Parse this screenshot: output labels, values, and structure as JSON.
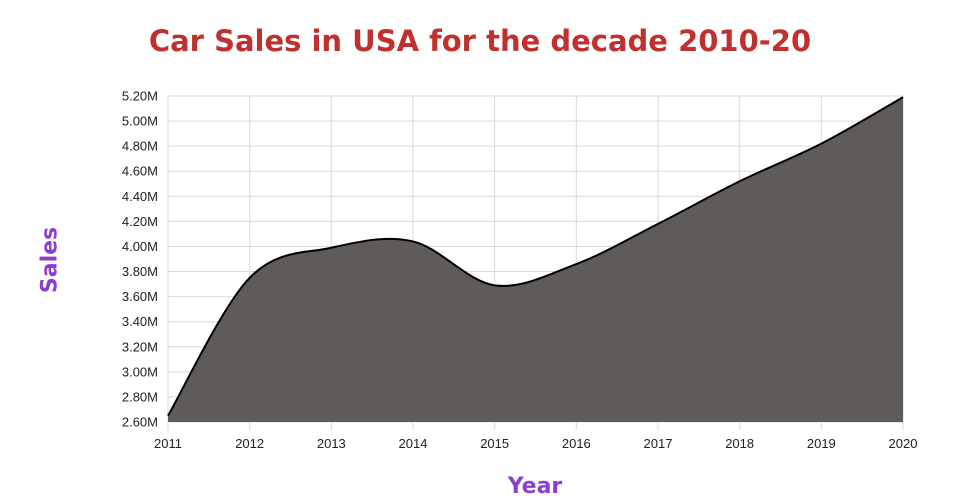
{
  "chart_data": {
    "type": "area",
    "title": "Car Sales in USA for the decade 2010-20",
    "xlabel": "Year",
    "ylabel": "Sales",
    "x": [
      "2011",
      "2012",
      "2013",
      "2014",
      "2015",
      "2016",
      "2017",
      "2018",
      "2019",
      "2020"
    ],
    "series": [
      {
        "values": [
          2.65,
          3.75,
          3.99,
          4.04,
          3.69,
          3.86,
          4.18,
          4.52,
          4.82,
          5.19
        ]
      }
    ],
    "y_unit": "M",
    "ylim": [
      2.6,
      5.2
    ],
    "yticks": [
      "2.60M",
      "2.80M",
      "3.00M",
      "3.20M",
      "3.40M",
      "3.60M",
      "3.80M",
      "4.00M",
      "4.20M",
      "4.40M",
      "4.60M",
      "4.80M",
      "5.00M",
      "5.20M"
    ],
    "grid": true,
    "colors": {
      "fill": "#5f5b58",
      "line": "#000000",
      "title": "#c0302f",
      "axis_label": "#8b3fcf"
    }
  }
}
